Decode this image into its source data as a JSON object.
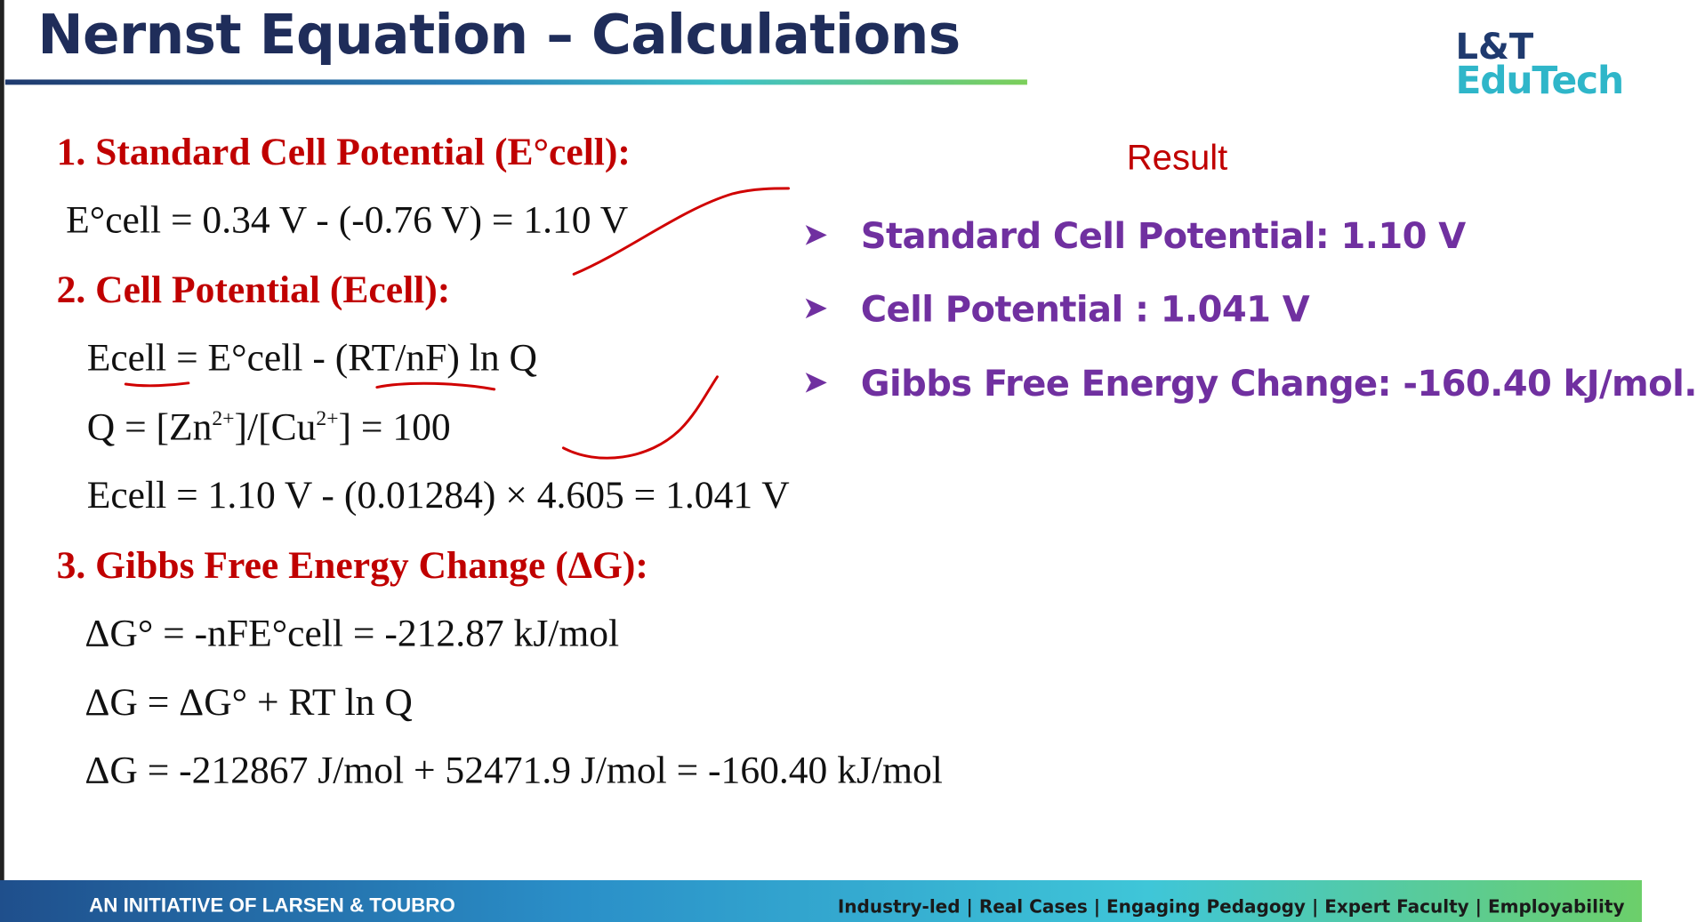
{
  "header": {
    "title": "Nernst Equation – Calculations",
    "logo_top": "L&T",
    "logo_bottom": "EduTech"
  },
  "sections": [
    {
      "heading": "1. Standard Cell Potential (E°cell):",
      "lines": [
        [
          "E°cell = 0.34 V - (-0.76 V) = 1.10 V"
        ]
      ]
    },
    {
      "heading": "2. Cell Potential (Ecell):",
      "lines": [
        [
          "Ecell = E°cell - (RT/nF) ln Q"
        ],
        [
          "Q = [Zn",
          "2+",
          "]/[Cu",
          "2+",
          "] = 100"
        ],
        [
          "Ecell = 1.10 V - (0.01284) × 4.605 = 1.041 V"
        ]
      ]
    },
    {
      "heading": "3. Gibbs Free Energy Change (ΔG):",
      "lines": [
        [
          "ΔG° = -nFE°cell = -212.87 kJ/mol"
        ],
        [
          "ΔG = ΔG° + RT ln Q"
        ],
        [
          "ΔG = -212867 J/mol + 52471.9 J/mol = -160.40 kJ/mol"
        ]
      ]
    }
  ],
  "result": {
    "title": "Result",
    "bullets": [
      "Standard Cell Potential: 1.10 V",
      "Cell Potential : 1.041 V",
      "Gibbs Free Energy Change: -160.40 kJ/mol."
    ]
  },
  "footer": {
    "left": "AN INITIATIVE OF LARSEN & TOUBRO",
    "right": "Industry-led | Real Cases | Engaging Pedagogy | Expert Faculty | Employability"
  }
}
